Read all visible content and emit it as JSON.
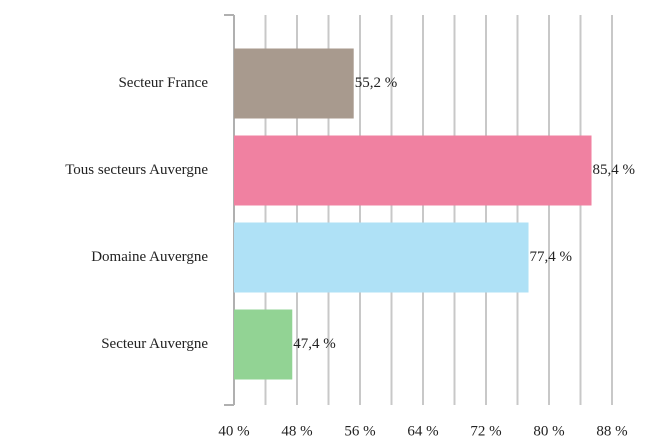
{
  "chart_data": {
    "type": "barh",
    "categories": [
      "Secteur France",
      "Tous secteurs Auvergne",
      "Domaine Auvergne",
      "Secteur Auvergne"
    ],
    "values": [
      55.2,
      85.4,
      77.4,
      47.4
    ],
    "value_labels": [
      "55,2 %",
      "85,4 %",
      "77,4 %",
      "47,4 %"
    ],
    "colors": [
      "#a89a8e",
      "#f081a1",
      "#afe1f6",
      "#92d394"
    ],
    "xlim": [
      40,
      88
    ],
    "xticks": [
      {
        "value": 40,
        "label": "40 %"
      },
      {
        "value": 48,
        "label": "48 %"
      },
      {
        "value": 56,
        "label": "56 %"
      },
      {
        "value": 64,
        "label": "64 %"
      },
      {
        "value": 72,
        "label": "72 %"
      },
      {
        "value": 80,
        "label": "80 %"
      },
      {
        "value": 88,
        "label": "88 %"
      }
    ],
    "minor_xticks": [
      44,
      52,
      60,
      68,
      76,
      84
    ],
    "grid": true
  }
}
